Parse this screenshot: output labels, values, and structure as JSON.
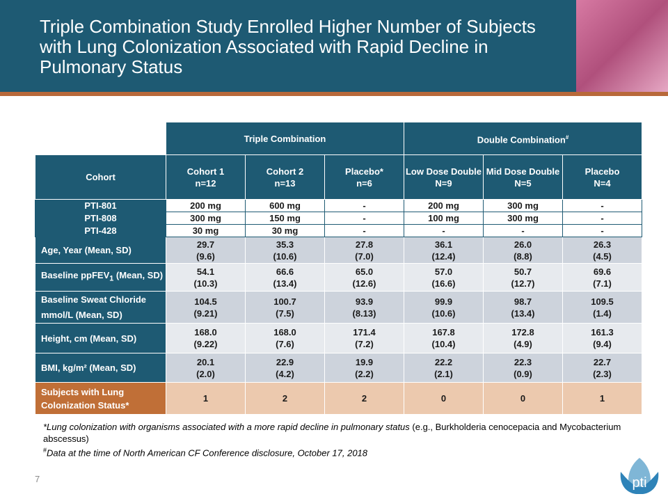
{
  "header": {
    "title": "Triple Combination Study Enrolled Higher Number of Subjects with Lung Colonization Associated with Rapid Decline in Pulmonary Status"
  },
  "table": {
    "groups": [
      {
        "label": "Triple Combination"
      },
      {
        "label": "Double Combination",
        "mark": "#"
      }
    ],
    "corner": "Cohort",
    "columns": [
      {
        "name": "Cohort 1",
        "n": "n=12"
      },
      {
        "name": "Cohort 2",
        "n": "n=13"
      },
      {
        "name": "Placebo*",
        "n": "n=6"
      },
      {
        "name": "Low Dose Double",
        "n": "N=9"
      },
      {
        "name": "Mid Dose Double",
        "n": "N=5"
      },
      {
        "name": "Placebo",
        "n": "N=4"
      }
    ],
    "rows": [
      {
        "label": "PTI-801",
        "values": [
          "200 mg",
          "600 mg",
          "-",
          "200 mg",
          "300 mg",
          "-"
        ]
      },
      {
        "label": "PTI-808",
        "values": [
          "300 mg",
          "150 mg",
          "-",
          "100 mg",
          "300 mg",
          "-"
        ]
      },
      {
        "label": "PTI-428",
        "values": [
          "30 mg",
          "30 mg",
          "-",
          "-",
          "-",
          "-"
        ]
      },
      {
        "label": "Age, Year  (Mean, SD)",
        "values": [
          [
            "29.7",
            "(9.6)"
          ],
          [
            "35.3",
            "(10.6)"
          ],
          [
            "27.8",
            "(7.0)"
          ],
          [
            "36.1",
            "(12.4)"
          ],
          [
            "26.0",
            "(8.8)"
          ],
          [
            "26.3",
            "(4.5)"
          ]
        ]
      },
      {
        "label": "Baseline ppFEV",
        "label_sub": "1",
        "label_suffix": " (Mean, SD)",
        "values": [
          [
            "54.1",
            "(10.3)"
          ],
          [
            "66.6",
            "(13.4)"
          ],
          [
            "65.0",
            "(12.6)"
          ],
          [
            "57.0",
            "(16.6)"
          ],
          [
            "50.7",
            "(12.7)"
          ],
          [
            "69.6",
            "(7.1)"
          ]
        ]
      },
      {
        "label": [
          "Baseline Sweat Chloride",
          "mmol/L  (Mean, SD)"
        ],
        "values": [
          [
            "104.5",
            "(9.21)"
          ],
          [
            "100.7",
            "(7.5)"
          ],
          [
            "93.9",
            "(8.13)"
          ],
          [
            "99.9",
            "(10.6)"
          ],
          [
            "98.7",
            "(13.4)"
          ],
          [
            "109.5",
            "(1.4)"
          ]
        ]
      },
      {
        "label": "Height, cm  (Mean, SD)",
        "values": [
          [
            "168.0",
            "(9.22)"
          ],
          [
            "168.0",
            "(7.6)"
          ],
          [
            "171.4",
            "(7.2)"
          ],
          [
            "167.8",
            "(10.4)"
          ],
          [
            "172.8",
            "(4.9)"
          ],
          [
            "161.3",
            "(9.4)"
          ]
        ]
      },
      {
        "label": "BMI, kg/m²  (Mean, SD)",
        "values": [
          [
            "20.1",
            "(2.0)"
          ],
          [
            "22.9",
            "(4.2)"
          ],
          [
            "19.9",
            "(2.2)"
          ],
          [
            "22.2",
            "(2.1)"
          ],
          [
            "22.3",
            "(0.9)"
          ],
          [
            "22.7",
            "(2.3)"
          ]
        ]
      },
      {
        "label": [
          "Subjects with Lung",
          "Colonization Status*"
        ],
        "values": [
          "1",
          "2",
          "2",
          "0",
          "0",
          "1"
        ]
      }
    ]
  },
  "footnotes": [
    {
      "italic": "*Lung colonization with organisms associated with a more rapid decline in pulmonary status",
      "plain": " (e.g., Burkholderia cenocepacia and Mycobacterium abscessus)"
    },
    {
      "mark": "#",
      "italic": "Data at the time of North American CF Conference disclosure, October 17, 2018"
    }
  ],
  "page_number": "7",
  "logo": "pti"
}
